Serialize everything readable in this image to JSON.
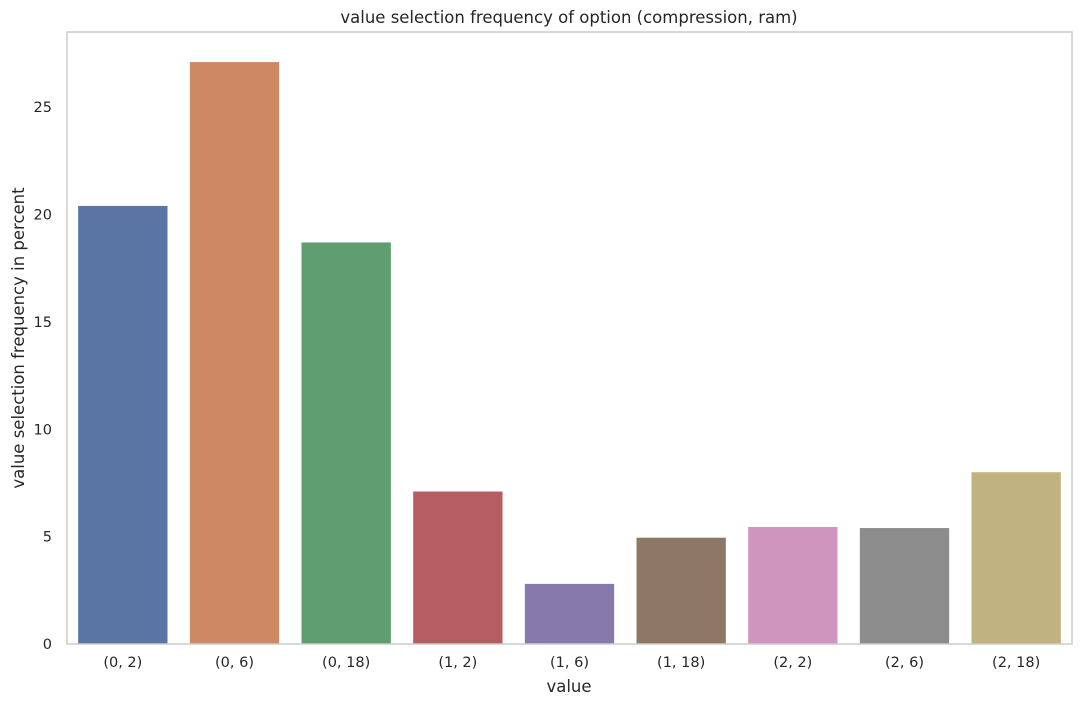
{
  "chart_data": {
    "type": "bar",
    "title": "value selection frequency of option (compression, ram)",
    "xlabel": "value",
    "ylabel": "value selection frequency in percent",
    "categories": [
      "(0, 2)",
      "(0, 6)",
      "(0, 18)",
      "(1, 2)",
      "(1, 6)",
      "(1, 18)",
      "(2, 2)",
      "(2, 6)",
      "(2, 18)"
    ],
    "values": [
      20.4,
      27.1,
      18.7,
      7.1,
      2.8,
      4.95,
      5.45,
      5.4,
      8.0
    ],
    "colors": [
      "#5875a4",
      "#cc8963",
      "#5f9e6e",
      "#b55d60",
      "#857aab",
      "#8d7866",
      "#d095bf",
      "#8c8c8c",
      "#c1b37f"
    ],
    "ylim": [
      0,
      28.5
    ],
    "yticks": [
      0,
      5,
      10,
      15,
      20,
      25
    ],
    "grid": false,
    "legend": "none"
  }
}
